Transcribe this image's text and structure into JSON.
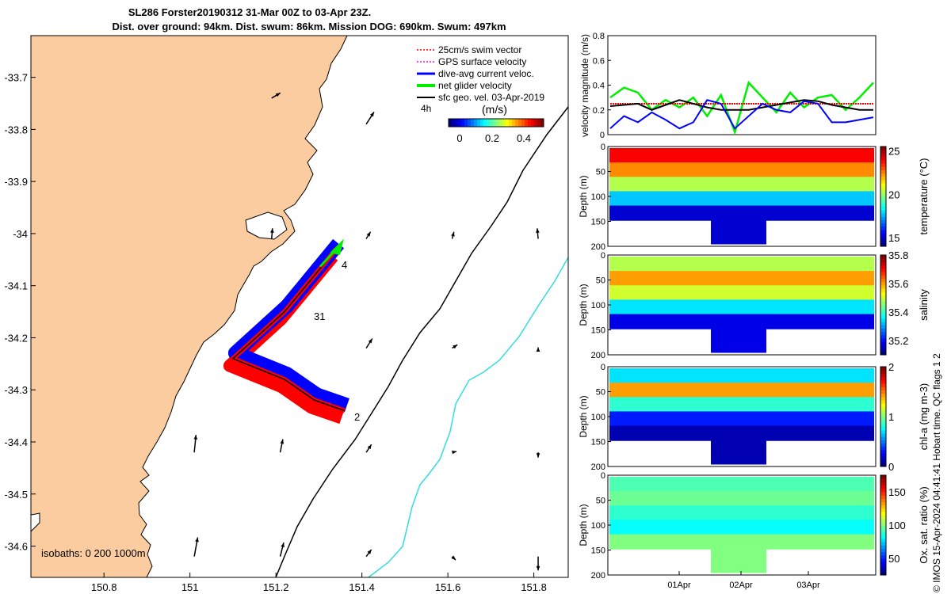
{
  "header": {
    "title_line1": "SL286 Forster20190312 31-Mar 00Z to 03-Apr 23Z.",
    "title_line2": "Dist. over ground: 94km. Dist. swum: 86km. Mission DOG: 690km. Swum: 497km"
  },
  "footer_text": "© IMOS 15-Apr-2024 04:41:41 Hobart time. QC flags 1  2",
  "colors": {
    "land": "#fbcc9f",
    "sea": "#ffffff",
    "track_blue": "#0000ff",
    "track_red": "#ff0000",
    "net_green": "#00ee00",
    "isobath_200": "#000000",
    "isobath_1000": "#33dddd",
    "gps_magenta": "#ff00ff"
  },
  "chart_data": [
    {
      "type": "map",
      "xlim": [
        150.63,
        151.88
      ],
      "ylim": [
        -34.66,
        -33.62
      ],
      "xticks": [
        "150.8",
        "151",
        "151.2",
        "151.4",
        "151.6",
        "151.8"
      ],
      "yticks": [
        "-33.7",
        "-33.8",
        "-33.9",
        "-34",
        "-34.1",
        "-34.2",
        "-34.3",
        "-34.4",
        "-34.5",
        "-34.6"
      ],
      "legend": {
        "placement": "top-right",
        "items": [
          {
            "label": "25cm/s swim vector",
            "color": "#ff0000"
          },
          {
            "label": "GPS surface velocity",
            "color": "#ff00ff"
          },
          {
            "label": "dive-avg current veloc.",
            "color": "#0000ff"
          },
          {
            "label": "net glider velocity",
            "color": "#00ee00"
          },
          {
            "label": "sfc geo. vel. 03-Apr-2019",
            "color": "#000000"
          }
        ]
      },
      "colorbar": {
        "title": "(m/s)",
        "prefix": "4h",
        "range": [
          -0.1,
          0.47
        ],
        "ticks": [
          "0",
          "0.2",
          "0.4"
        ]
      },
      "isobaths_label": "isobaths: 0   200  1000m",
      "track_labels": [
        {
          "text": "4",
          "lon": 151.36,
          "lat": -34.08
        },
        {
          "text": "31",
          "lon": 151.28,
          "lat": -34.16
        },
        {
          "text": "2",
          "lon": 151.37,
          "lat": -34.355
        }
      ],
      "track_points": [
        [
          151.34,
          -34.03
        ],
        [
          151.22,
          -34.15
        ],
        [
          151.1,
          -34.24
        ],
        [
          151.22,
          -34.28
        ],
        [
          151.29,
          -34.32
        ],
        [
          151.36,
          -34.34
        ]
      ],
      "velocity_arrows": [
        {
          "lon": 151.19,
          "lat": -33.74,
          "u": 0.5,
          "v": 0.3
        },
        {
          "lon": 151.41,
          "lat": -33.79,
          "u": 0.45,
          "v": 0.7
        },
        {
          "lon": 151.19,
          "lat": -34.01,
          "u": 0.05,
          "v": 0.6
        },
        {
          "lon": 151.41,
          "lat": -34.01,
          "u": 0.25,
          "v": 0.4
        },
        {
          "lon": 151.61,
          "lat": -34.01,
          "u": 0.1,
          "v": 0.4
        },
        {
          "lon": 151.81,
          "lat": -34.01,
          "u": -0.05,
          "v": 0.6
        },
        {
          "lon": 151.41,
          "lat": -34.22,
          "u": 0.35,
          "v": 0.55
        },
        {
          "lon": 151.61,
          "lat": -34.22,
          "u": 0.3,
          "v": 0.2
        },
        {
          "lon": 151.81,
          "lat": -34.22,
          "u": 0.0,
          "v": 0.05
        },
        {
          "lon": 151.01,
          "lat": -34.42,
          "u": 0.1,
          "v": 1.0
        },
        {
          "lon": 151.21,
          "lat": -34.42,
          "u": 0.15,
          "v": 0.75
        },
        {
          "lon": 151.41,
          "lat": -34.42,
          "u": 0.3,
          "v": 0.45
        },
        {
          "lon": 151.61,
          "lat": -34.42,
          "u": 0.25,
          "v": 0.05
        },
        {
          "lon": 151.81,
          "lat": -34.42,
          "u": 0.0,
          "v": -0.3
        },
        {
          "lon": 151.01,
          "lat": -34.62,
          "u": 0.2,
          "v": 1.1
        },
        {
          "lon": 151.21,
          "lat": -34.62,
          "u": 0.2,
          "v": 0.8
        },
        {
          "lon": 151.41,
          "lat": -34.62,
          "u": 0.3,
          "v": 0.4
        },
        {
          "lon": 151.61,
          "lat": -34.62,
          "u": 0.2,
          "v": -0.2
        },
        {
          "lon": 151.81,
          "lat": -34.62,
          "u": 0.0,
          "v": -0.8
        }
      ]
    },
    {
      "type": "line",
      "ylabel": "velocity magnitude (m/s)",
      "ylim": [
        0,
        0.8
      ],
      "yticks": [
        "0",
        "0.2",
        "0.4",
        "0.6",
        "0.8"
      ],
      "series": [
        {
          "color": "#00ee00",
          "values": [
            0.3,
            0.38,
            0.34,
            0.2,
            0.28,
            0.22,
            0.3,
            0.15,
            0.32,
            0.02,
            0.42,
            0.3,
            0.18,
            0.34,
            0.22,
            0.3,
            0.32,
            0.2,
            0.3,
            0.42
          ]
        },
        {
          "color": "#ff0000",
          "values": [
            0.25,
            0.25,
            0.25,
            0.25,
            0.25,
            0.25,
            0.25,
            0.25,
            0.25,
            0.25,
            0.25,
            0.25,
            0.25,
            0.25,
            0.25,
            0.25,
            0.25,
            0.25,
            0.25,
            0.25
          ]
        },
        {
          "color": "#000000",
          "values": [
            0.23,
            0.24,
            0.25,
            0.2,
            0.24,
            0.28,
            0.25,
            0.22,
            0.2,
            0.2,
            0.2,
            0.22,
            0.24,
            0.26,
            0.28,
            0.27,
            0.24,
            0.22,
            0.2,
            0.2
          ]
        },
        {
          "color": "#0000ff",
          "values": [
            0.05,
            0.15,
            0.1,
            0.18,
            0.12,
            0.05,
            0.1,
            0.28,
            0.25,
            0.05,
            0.15,
            0.25,
            0.2,
            0.18,
            0.27,
            0.25,
            0.1,
            0.1,
            0.12,
            0.14
          ]
        }
      ]
    },
    {
      "type": "heatmap",
      "ylabel": "Depth (m)",
      "cbar_label": "temperature (°C)",
      "cbar_ticks": [
        "15",
        "20",
        "25"
      ],
      "cbar_range": [
        14,
        25.5
      ],
      "depth_ticks": [
        "0",
        "50",
        "100",
        "150",
        "200"
      ]
    },
    {
      "type": "heatmap",
      "ylabel": "Depth (m)",
      "cbar_label": "salinity",
      "cbar_ticks": [
        "35.2",
        "35.4",
        "35.6",
        "35.8"
      ],
      "cbar_range": [
        35.1,
        35.8
      ],
      "depth_ticks": [
        "0",
        "50",
        "100",
        "150",
        "200"
      ]
    },
    {
      "type": "heatmap",
      "ylabel": "Depth (m)",
      "cbar_label": "chl-a (mg m-3)",
      "cbar_ticks": [
        "0",
        "1",
        "2"
      ],
      "cbar_range": [
        0,
        2
      ],
      "depth_ticks": [
        "0",
        "50",
        "100",
        "150",
        "200"
      ]
    },
    {
      "type": "heatmap",
      "ylabel": "Depth (m)",
      "cbar_label": "Ox. sat. ratio (%)",
      "cbar_ticks": [
        "50",
        "100",
        "150"
      ],
      "cbar_range": [
        25,
        175
      ],
      "depth_ticks": [
        "0",
        "50",
        "100",
        "150",
        "200"
      ],
      "xticks": [
        "01Apr",
        "02Apr",
        "03Apr"
      ]
    }
  ]
}
